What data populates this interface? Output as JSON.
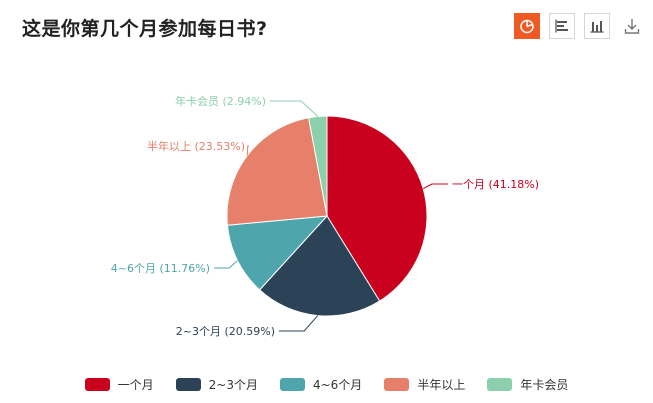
{
  "title": "这是你第几个月参加每日书?",
  "toolbar": {
    "buttons": [
      {
        "name": "pie-chart-button",
        "icon": "pie-chart-icon",
        "active": true
      },
      {
        "name": "horizontal-bar-button",
        "icon": "horizontal-bar-icon",
        "active": false
      },
      {
        "name": "vertical-bar-button",
        "icon": "vertical-bar-icon",
        "active": false
      },
      {
        "name": "download-button",
        "icon": "download-icon",
        "active": false
      }
    ]
  },
  "chart_data": {
    "type": "pie",
    "title": "这是你第几个月参加每日书?",
    "slices": [
      {
        "name": "一个月",
        "value": 41.18,
        "label": "一个月 (41.18%)",
        "color": "#c9001e"
      },
      {
        "name": "2~3个月",
        "value": 20.59,
        "label": "2~3个月 (20.59%)",
        "color": "#2c4257"
      },
      {
        "name": "4~6个月",
        "value": 11.76,
        "label": "4~6个月 (11.76%)",
        "color": "#4ea6ac"
      },
      {
        "name": "半年以上",
        "value": 23.53,
        "label": "半年以上 (23.53%)",
        "color": "#e7806a"
      },
      {
        "name": "年卡会员",
        "value": 2.94,
        "label": "年卡会员 (2.94%)",
        "color": "#8ccfad"
      }
    ],
    "legend_position": "bottom"
  }
}
